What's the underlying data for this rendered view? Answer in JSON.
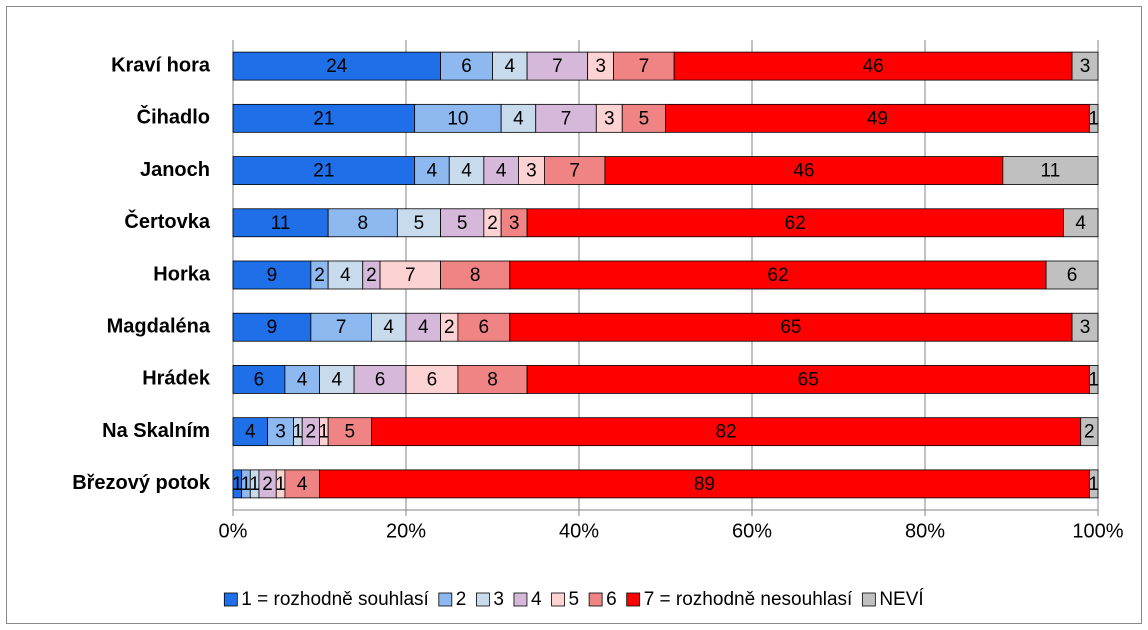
{
  "chart_data": {
    "type": "stacked_bar_horizontal",
    "categories": [
      "Kraví hora",
      "Čihadlo",
      "Janoch",
      "Čertovka",
      "Horka",
      "Magdaléna",
      "Hrádek",
      "Na Skalním",
      "Březový potok"
    ],
    "series": [
      {
        "name": "1 = rozhodně souhlasí",
        "color": "#1f6fe8",
        "values": [
          24,
          21,
          21,
          11,
          9,
          9,
          6,
          4,
          1
        ]
      },
      {
        "name": "2",
        "color": "#8db8f0",
        "values": [
          6,
          10,
          4,
          8,
          2,
          7,
          4,
          3,
          1
        ]
      },
      {
        "name": "3",
        "color": "#c8dbec",
        "values": [
          4,
          4,
          4,
          5,
          4,
          4,
          4,
          1,
          1
        ]
      },
      {
        "name": "4",
        "color": "#d6b8da",
        "values": [
          7,
          7,
          4,
          5,
          2,
          4,
          6,
          2,
          2
        ]
      },
      {
        "name": "5",
        "color": "#fdd2d2",
        "values": [
          3,
          3,
          3,
          2,
          7,
          2,
          6,
          1,
          1
        ]
      },
      {
        "name": "6",
        "color": "#f08484",
        "values": [
          7,
          5,
          7,
          3,
          8,
          6,
          8,
          5,
          4
        ]
      },
      {
        "name": "7 = rozhodně nesouhlasí",
        "color": "#ff0000",
        "values": [
          46,
          49,
          46,
          62,
          62,
          65,
          65,
          82,
          89
        ]
      },
      {
        "name": "NEVÍ",
        "color": "#c0c0c0",
        "values": [
          3,
          1,
          11,
          4,
          6,
          3,
          1,
          2,
          1
        ]
      }
    ],
    "xlim": [
      0,
      100
    ],
    "xticks": [
      {
        "value": 0,
        "label": "0%"
      },
      {
        "value": 20,
        "label": "20%"
      },
      {
        "value": 40,
        "label": "40%"
      },
      {
        "value": 60,
        "label": "60%"
      },
      {
        "value": 80,
        "label": "80%"
      },
      {
        "value": 100,
        "label": "100%"
      }
    ],
    "grid": true,
    "legend": "bottom"
  }
}
